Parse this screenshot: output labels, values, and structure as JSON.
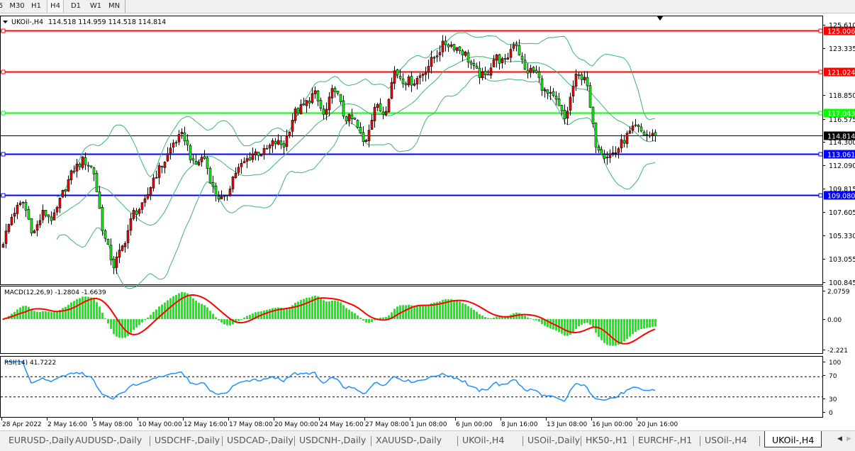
{
  "toolbar": {
    "timeframes": [
      "5",
      "M30",
      "H1",
      "H4",
      "D1",
      "W1",
      "MN"
    ],
    "active": "H4"
  },
  "chart": {
    "header": "UKOil-,H4",
    "ohlc": "114.518 114.959 114.518 114.814",
    "price_ticks": [
      "125.610",
      "123.335",
      "118.850",
      "116.575",
      "114.300",
      "112.090",
      "109.815",
      "107.605",
      "105.330",
      "103.055",
      "100.845"
    ],
    "levels": [
      {
        "price": 125.006,
        "label": "125.006",
        "color": "#ff0000"
      },
      {
        "price": 121.024,
        "label": "121.024",
        "color": "#ff0000"
      },
      {
        "price": 117.043,
        "label": "117.043",
        "color": "#00ff00"
      },
      {
        "price": 114.814,
        "label": "114.814",
        "color": "#000000"
      },
      {
        "price": 113.061,
        "label": "113.061",
        "color": "#0000ff"
      },
      {
        "price": 109.08,
        "label": "109.080",
        "color": "#0000ff"
      }
    ],
    "bull_color": "#ff0000",
    "bear_color": "#00ff00",
    "bands_color": "#3cb371"
  },
  "macd": {
    "label": "MACD(12,26,9) -1.2804 -1.6639",
    "ticks": [
      "2.0759",
      "0.00",
      "-2.221"
    ],
    "hist_color": "#00ff00",
    "signal_color": "#ff0000"
  },
  "rsi": {
    "label": "RSI(14) 41.7222",
    "ticks": [
      "100",
      "70",
      "30",
      "0"
    ],
    "line_color": "#1e90ff"
  },
  "time_axis": [
    "28 Apr 2022",
    "2 May 16:00",
    "5 May 08:00",
    "10 May 00:00",
    "12 May 16:00",
    "17 May 08:00",
    "20 May 00:00",
    "24 May 16:00",
    "27 May 08:00",
    "1 Jun 08:00",
    "6 Jun 00:00",
    "8 Jun 16:00",
    "13 Jun 08:00",
    "16 Jun 00:00",
    "20 Jun 16:00"
  ],
  "tabs": [
    "EURUSD-,Daily",
    "AUDUSD-,Daily",
    "USDCHF-,Daily",
    "USDCAD-,Daily",
    "USDCNH-,Daily",
    "XAUUSD-,Daily",
    "UKOil-,H4",
    "USOil-,Daily",
    "HK50-,H1",
    "EURCHF-,H1",
    "USOil-,H4",
    "UKOil-,H4"
  ],
  "active_tab": 11,
  "chart_data": {
    "type": "candlestick",
    "symbol": "UKOil-",
    "timeframe": "H4",
    "ylim": [
      100.845,
      125.61
    ],
    "close_path": [
      104.6,
      107.4,
      108.4,
      105.3,
      107.4,
      106.7,
      109.4,
      111.5,
      112.5,
      111.5,
      105.3,
      102.2,
      104.3,
      107.4,
      108.0,
      110.8,
      112.2,
      114.2,
      114.9,
      111.8,
      112.9,
      109.4,
      108.4,
      111.1,
      112.2,
      113.2,
      113.2,
      114.2,
      113.9,
      117.0,
      117.7,
      119.0,
      116.6,
      119.7,
      116.6,
      116.3,
      113.9,
      117.7,
      117.0,
      121.1,
      120.1,
      120.1,
      121.1,
      122.5,
      123.8,
      123.5,
      122.8,
      121.1,
      120.4,
      122.5,
      121.8,
      124.2,
      121.1,
      121.1,
      119.0,
      118.3,
      116.3,
      120.4,
      120.7,
      114.2,
      112.9,
      113.2,
      114.6,
      115.6,
      114.9,
      114.814
    ]
  }
}
